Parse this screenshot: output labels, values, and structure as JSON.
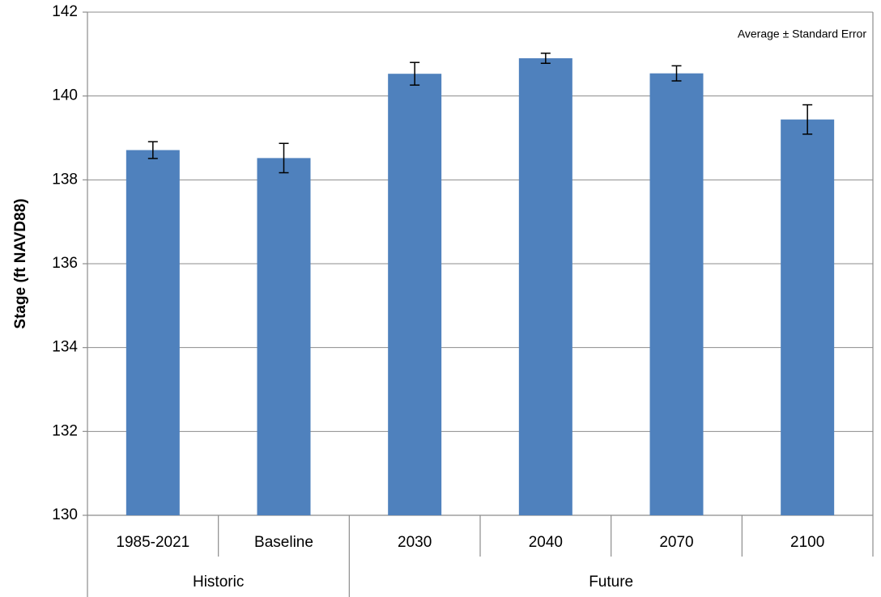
{
  "chart_data": {
    "type": "bar",
    "y_label": "Stage (ft NAVD88)",
    "annotation": "Average ± Standard Error",
    "groups": [
      {
        "name": "Historic",
        "categories": [
          "1985-2021",
          "Baseline"
        ]
      },
      {
        "name": "Future",
        "categories": [
          "2030",
          "2040",
          "2070",
          "2100"
        ]
      }
    ],
    "values": [
      138.71,
      138.52,
      140.53,
      140.9,
      140.54,
      139.44
    ],
    "errors": [
      0.2,
      0.35,
      0.27,
      0.12,
      0.18,
      0.35
    ],
    "color": "#4f81bd",
    "ylim": [
      130,
      142
    ],
    "yticks": [
      130,
      132,
      134,
      136,
      138,
      140,
      142
    ],
    "grid": true
  }
}
